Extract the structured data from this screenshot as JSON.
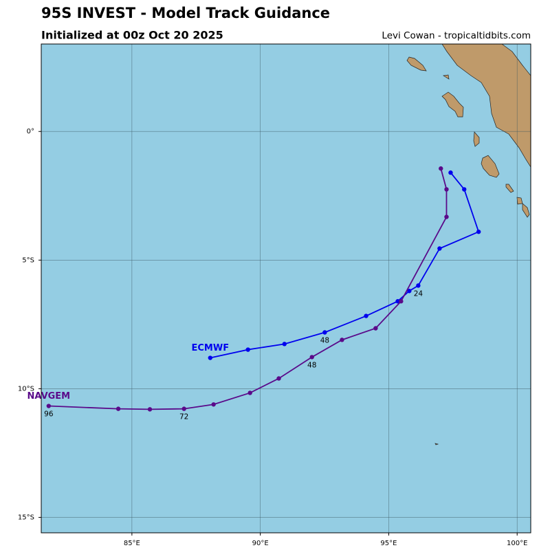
{
  "chart_data": {
    "type": "track",
    "title": "95S INVEST - Model Track Guidance",
    "subtitle": "Initialized at 00z Oct 20 2025",
    "credit": "Levi Cowan - tropicaltidbits.com",
    "xlim": [
      81.47,
      100.53
    ],
    "ylim": [
      -15.6,
      3.4
    ],
    "xticks": [
      {
        "value": 85,
        "label": "85°E"
      },
      {
        "value": 90,
        "label": "90°E"
      },
      {
        "value": 95,
        "label": "95°E"
      },
      {
        "value": 100,
        "label": "100°E"
      }
    ],
    "yticks": [
      {
        "value": 0,
        "label": "0°"
      },
      {
        "value": -5,
        "label": "5°S"
      },
      {
        "value": -10,
        "label": "10°S"
      },
      {
        "value": -15,
        "label": "15°S"
      }
    ],
    "grid": true,
    "series": [
      {
        "name": "ECMWF",
        "color": "#0000ee",
        "x": [
          97.41,
          97.94,
          98.5,
          96.98,
          96.15,
          95.8,
          95.35,
          94.12,
          92.51,
          90.94,
          89.52,
          88.05
        ],
        "values": [
          -1.6,
          -2.25,
          -3.9,
          -4.55,
          -5.99,
          -6.2,
          -6.6,
          -7.17,
          -7.81,
          -8.26,
          -8.48,
          -8.8
        ],
        "value_labels": [
          null,
          null,
          null,
          null,
          "24",
          null,
          null,
          null,
          "48",
          null,
          null,
          null
        ]
      },
      {
        "name": "NAVGEM",
        "color": "#5a0a8a",
        "x": [
          97.03,
          97.25,
          97.25,
          95.48,
          94.49,
          93.18,
          92.01,
          90.72,
          89.6,
          88.18,
          87.03,
          85.7,
          84.47,
          81.76
        ],
        "values": [
          -1.44,
          -2.25,
          -3.32,
          -6.6,
          -7.65,
          -8.1,
          -8.77,
          -9.6,
          -10.16,
          -10.61,
          -10.78,
          -10.8,
          -10.78,
          -10.67
        ],
        "value_labels": [
          null,
          null,
          null,
          null,
          null,
          null,
          "48",
          null,
          null,
          null,
          "72",
          null,
          null,
          "96"
        ]
      }
    ]
  }
}
